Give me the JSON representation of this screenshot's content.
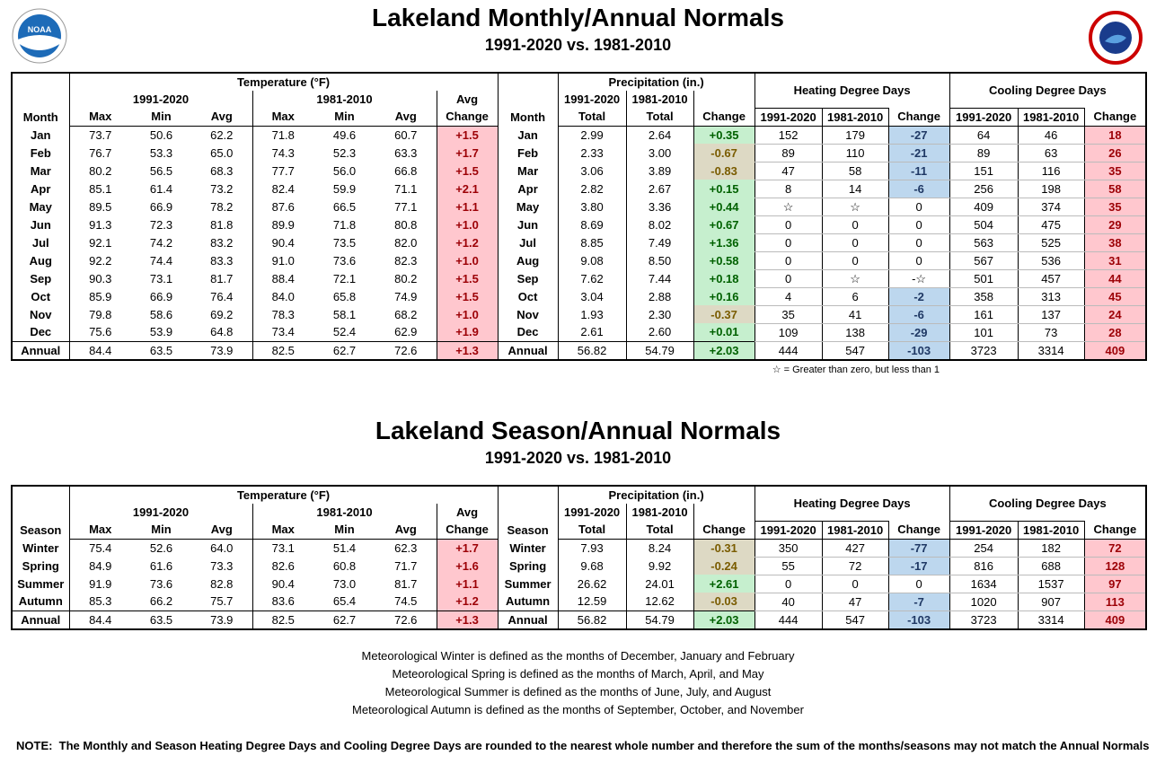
{
  "logo_text": "NOAA",
  "monthly": {
    "title": "Lakeland Monthly/Annual Normals",
    "subtitle": "1991-2020 vs. 1981-2010",
    "headers": {
      "groups": [
        "Temperature (°F)",
        "Precipitation (in.)",
        "Heating Degree Days",
        "Cooling Degree Days"
      ],
      "periods": [
        "1991-2020",
        "1981-2010",
        "Avg",
        "1991-2020",
        "1981-2010"
      ],
      "columns": [
        "Month",
        "Max",
        "Min",
        "Avg",
        "Max",
        "Min",
        "Avg",
        "Change",
        "Month",
        "Total",
        "Total",
        "Change",
        "1991-2020",
        "1981-2010",
        "Change",
        "1991-2020",
        "1981-2010",
        "Change"
      ]
    },
    "rows": [
      [
        "Jan",
        "73.7",
        "50.6",
        "62.2",
        "71.8",
        "49.6",
        "60.7",
        "+1.5",
        "Jan",
        "2.99",
        "2.64",
        "+0.35",
        "152",
        "179",
        "-27",
        "64",
        "46",
        "18"
      ],
      [
        "Feb",
        "76.7",
        "53.3",
        "65.0",
        "74.3",
        "52.3",
        "63.3",
        "+1.7",
        "Feb",
        "2.33",
        "3.00",
        "-0.67",
        "89",
        "110",
        "-21",
        "89",
        "63",
        "26"
      ],
      [
        "Mar",
        "80.2",
        "56.5",
        "68.3",
        "77.7",
        "56.0",
        "66.8",
        "+1.5",
        "Mar",
        "3.06",
        "3.89",
        "-0.83",
        "47",
        "58",
        "-11",
        "151",
        "116",
        "35"
      ],
      [
        "Apr",
        "85.1",
        "61.4",
        "73.2",
        "82.4",
        "59.9",
        "71.1",
        "+2.1",
        "Apr",
        "2.82",
        "2.67",
        "+0.15",
        "8",
        "14",
        "-6",
        "256",
        "198",
        "58"
      ],
      [
        "May",
        "89.5",
        "66.9",
        "78.2",
        "87.6",
        "66.5",
        "77.1",
        "+1.1",
        "May",
        "3.80",
        "3.36",
        "+0.44",
        "☆",
        "☆",
        "0",
        "409",
        "374",
        "35"
      ],
      [
        "Jun",
        "91.3",
        "72.3",
        "81.8",
        "89.9",
        "71.8",
        "80.8",
        "+1.0",
        "Jun",
        "8.69",
        "8.02",
        "+0.67",
        "0",
        "0",
        "0",
        "504",
        "475",
        "29"
      ],
      [
        "Jul",
        "92.1",
        "74.2",
        "83.2",
        "90.4",
        "73.5",
        "82.0",
        "+1.2",
        "Jul",
        "8.85",
        "7.49",
        "+1.36",
        "0",
        "0",
        "0",
        "563",
        "525",
        "38"
      ],
      [
        "Aug",
        "92.2",
        "74.4",
        "83.3",
        "91.0",
        "73.6",
        "82.3",
        "+1.0",
        "Aug",
        "9.08",
        "8.50",
        "+0.58",
        "0",
        "0",
        "0",
        "567",
        "536",
        "31"
      ],
      [
        "Sep",
        "90.3",
        "73.1",
        "81.7",
        "88.4",
        "72.1",
        "80.2",
        "+1.5",
        "Sep",
        "7.62",
        "7.44",
        "+0.18",
        "0",
        "☆",
        "-☆",
        "501",
        "457",
        "44"
      ],
      [
        "Oct",
        "85.9",
        "66.9",
        "76.4",
        "84.0",
        "65.8",
        "74.9",
        "+1.5",
        "Oct",
        "3.04",
        "2.88",
        "+0.16",
        "4",
        "6",
        "-2",
        "358",
        "313",
        "45"
      ],
      [
        "Nov",
        "79.8",
        "58.6",
        "69.2",
        "78.3",
        "58.1",
        "68.2",
        "+1.0",
        "Nov",
        "1.93",
        "2.30",
        "-0.37",
        "35",
        "41",
        "-6",
        "161",
        "137",
        "24"
      ],
      [
        "Dec",
        "75.6",
        "53.9",
        "64.8",
        "73.4",
        "52.4",
        "62.9",
        "+1.9",
        "Dec",
        "2.61",
        "2.60",
        "+0.01",
        "109",
        "138",
        "-29",
        "101",
        "73",
        "28"
      ],
      [
        "Annual",
        "84.4",
        "63.5",
        "73.9",
        "82.5",
        "62.7",
        "72.6",
        "+1.3",
        "Annual",
        "56.82",
        "54.79",
        "+2.03",
        "444",
        "547",
        "-103",
        "3723",
        "3314",
        "409"
      ]
    ]
  },
  "star_note": "☆ = Greater than zero, but less than 1",
  "seasonal": {
    "title": "Lakeland Season/Annual Normals",
    "subtitle": "1991-2020 vs. 1981-2010",
    "headers": {
      "groups": [
        "Temperature (°F)",
        "Precipitation (in.)",
        "Heating Degree Days",
        "Cooling Degree Days"
      ],
      "periods": [
        "1991-2020",
        "1981-2010",
        "Avg",
        "1991-2020",
        "1981-2010"
      ],
      "columns": [
        "Season",
        "Max",
        "Min",
        "Avg",
        "Max",
        "Min",
        "Avg",
        "Change",
        "Season",
        "Total",
        "Total",
        "Change",
        "1991-2020",
        "1981-2010",
        "Change",
        "1991-2020",
        "1981-2010",
        "Change"
      ]
    },
    "rows": [
      [
        "Winter",
        "75.4",
        "52.6",
        "64.0",
        "73.1",
        "51.4",
        "62.3",
        "+1.7",
        "Winter",
        "7.93",
        "8.24",
        "-0.31",
        "350",
        "427",
        "-77",
        "254",
        "182",
        "72"
      ],
      [
        "Spring",
        "84.9",
        "61.6",
        "73.3",
        "82.6",
        "60.8",
        "71.7",
        "+1.6",
        "Spring",
        "9.68",
        "9.92",
        "-0.24",
        "55",
        "72",
        "-17",
        "816",
        "688",
        "128"
      ],
      [
        "Summer",
        "91.9",
        "73.6",
        "82.8",
        "90.4",
        "73.0",
        "81.7",
        "+1.1",
        "Summer",
        "26.62",
        "24.01",
        "+2.61",
        "0",
        "0",
        "0",
        "1634",
        "1537",
        "97"
      ],
      [
        "Autumn",
        "85.3",
        "66.2",
        "75.7",
        "83.6",
        "65.4",
        "74.5",
        "+1.2",
        "Autumn",
        "12.59",
        "12.62",
        "-0.03",
        "40",
        "47",
        "-7",
        "1020",
        "907",
        "113"
      ],
      [
        "Annual",
        "84.4",
        "63.5",
        "73.9",
        "82.5",
        "62.7",
        "72.6",
        "+1.3",
        "Annual",
        "56.82",
        "54.79",
        "+2.03",
        "444",
        "547",
        "-103",
        "3723",
        "3314",
        "409"
      ]
    ]
  },
  "definitions": [
    "Meteorological Winter is defined as the months of December, January and February",
    "Meteorological Spring is defined as the months of March, April, and May",
    "Meteorological Summer is defined as the months of June, July, and August",
    "Meteorological Autumn is defined as the months of September, October, and November"
  ],
  "note": "NOTE:  The Monthly and Season Heating Degree Days and Cooling Degree Days are rounded to the nearest whole number and therefore the sum of the months/seasons may not match the Annual Normals"
}
